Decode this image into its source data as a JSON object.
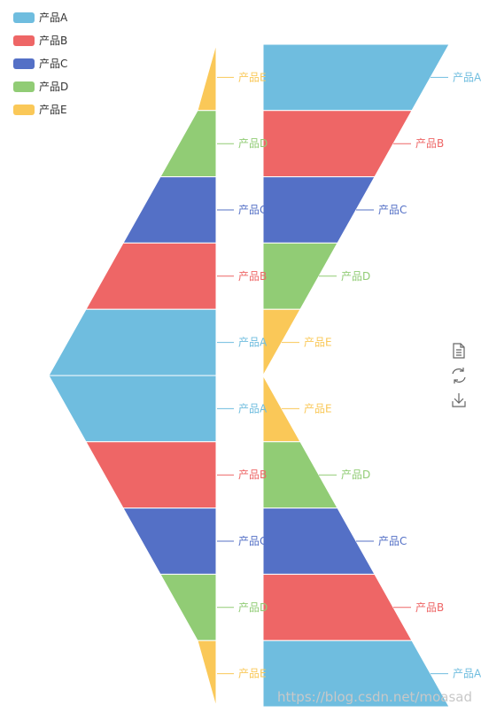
{
  "legend": {
    "items": [
      {
        "name": "产品A",
        "color": "#6fbddf"
      },
      {
        "name": "产品B",
        "color": "#ee6666"
      },
      {
        "name": "产品C",
        "color": "#5470c6"
      },
      {
        "name": "产品D",
        "color": "#91cc75"
      },
      {
        "name": "产品E",
        "color": "#fac858"
      }
    ]
  },
  "chart_data": [
    {
      "type": "funnel",
      "name": "",
      "orientation": "ascending",
      "align": "right",
      "categories": [
        "产品E",
        "产品D",
        "产品C",
        "产品B",
        "产品A"
      ],
      "values": [
        0.1,
        0.3,
        0.5,
        0.7,
        0.9
      ]
    },
    {
      "type": "funnel",
      "name": "",
      "orientation": "descending",
      "align": "right",
      "categories": [
        "产品A",
        "产品B",
        "产品C",
        "产品D",
        "产品E"
      ],
      "values": [
        0.9,
        0.7,
        0.5,
        0.3,
        0.1
      ]
    },
    {
      "type": "funnel",
      "name": "",
      "orientation": "descending",
      "align": "left",
      "categories": [
        "产品A",
        "产品B",
        "产品C",
        "产品D",
        "产品E"
      ],
      "values": [
        1.0,
        0.8,
        0.6,
        0.4,
        0.2
      ]
    },
    {
      "type": "funnel",
      "name": "",
      "orientation": "ascending",
      "align": "left",
      "categories": [
        "产品E",
        "产品D",
        "产品C",
        "产品B",
        "产品A"
      ],
      "values": [
        0.2,
        0.4,
        0.6,
        0.8,
        1.0
      ]
    }
  ],
  "toolbox": {
    "icons": [
      "data-view-icon",
      "restore-icon",
      "save-image-icon"
    ]
  },
  "watermark": "https://blog.csdn.net/moasad"
}
